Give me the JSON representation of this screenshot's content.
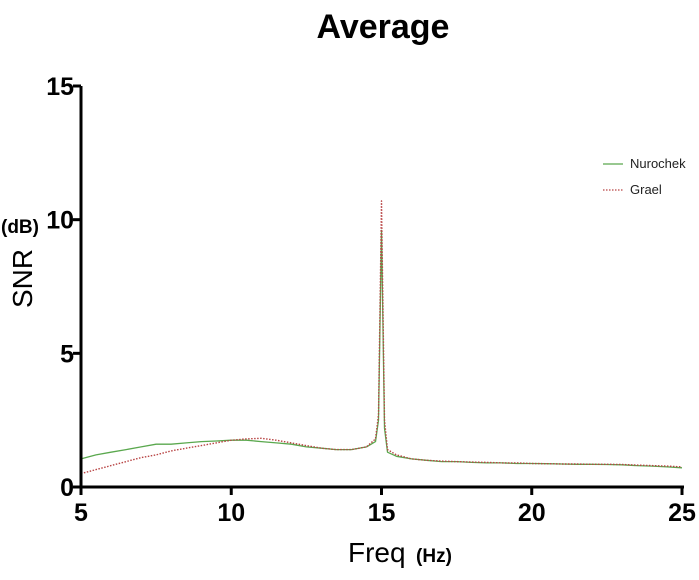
{
  "chart_data": {
    "type": "line",
    "title": "Average",
    "xlabel": "Freq",
    "xlabel_unit": "(Hz)",
    "ylabel": "SNR",
    "ylabel_unit": "(dB)",
    "xlim": [
      5,
      25
    ],
    "ylim": [
      0,
      15
    ],
    "xticks": [
      5,
      10,
      15,
      20,
      25
    ],
    "yticks": [
      0,
      5,
      10,
      15
    ],
    "grid": false,
    "legend_position": "top-right",
    "series": [
      {
        "name": "Nurochek",
        "color": "#5aa84e",
        "style": "solid",
        "x": [
          5,
          5.5,
          6,
          6.5,
          7,
          7.5,
          8,
          8.5,
          9,
          9.5,
          10,
          10.5,
          11,
          11.5,
          12,
          12.5,
          13,
          13.5,
          14,
          14.5,
          14.8,
          14.9,
          15,
          15.1,
          15.2,
          15.5,
          16,
          16.5,
          17,
          17.5,
          18,
          18.5,
          19,
          19.5,
          20,
          20.5,
          21,
          21.5,
          22,
          22.5,
          23,
          23.5,
          24,
          24.5,
          25
        ],
        "y": [
          1.05,
          1.2,
          1.3,
          1.4,
          1.5,
          1.6,
          1.6,
          1.65,
          1.7,
          1.72,
          1.75,
          1.75,
          1.7,
          1.65,
          1.6,
          1.5,
          1.45,
          1.4,
          1.4,
          1.5,
          1.7,
          2.5,
          9.6,
          2.2,
          1.3,
          1.15,
          1.05,
          1.0,
          0.95,
          0.95,
          0.92,
          0.9,
          0.9,
          0.88,
          0.88,
          0.87,
          0.86,
          0.85,
          0.85,
          0.84,
          0.83,
          0.8,
          0.78,
          0.75,
          0.72
        ]
      },
      {
        "name": "Grael",
        "color": "#b84444",
        "style": "dotted",
        "x": [
          5,
          5.5,
          6,
          6.5,
          7,
          7.5,
          8,
          8.5,
          9,
          9.5,
          10,
          10.5,
          11,
          11.5,
          12,
          12.5,
          13,
          13.5,
          14,
          14.5,
          14.8,
          14.9,
          15,
          15.1,
          15.2,
          15.5,
          16,
          16.5,
          17,
          17.5,
          18,
          18.5,
          19,
          19.5,
          20,
          20.5,
          21,
          21.5,
          22,
          22.5,
          23,
          23.5,
          24,
          24.5,
          25
        ],
        "y": [
          0.5,
          0.65,
          0.8,
          0.95,
          1.1,
          1.2,
          1.35,
          1.45,
          1.55,
          1.65,
          1.75,
          1.8,
          1.82,
          1.75,
          1.65,
          1.55,
          1.45,
          1.4,
          1.4,
          1.5,
          1.8,
          2.7,
          10.7,
          2.5,
          1.4,
          1.2,
          1.05,
          1.0,
          0.97,
          0.95,
          0.93,
          0.92,
          0.9,
          0.9,
          0.88,
          0.87,
          0.86,
          0.86,
          0.85,
          0.85,
          0.84,
          0.82,
          0.8,
          0.78,
          0.75
        ]
      }
    ]
  }
}
